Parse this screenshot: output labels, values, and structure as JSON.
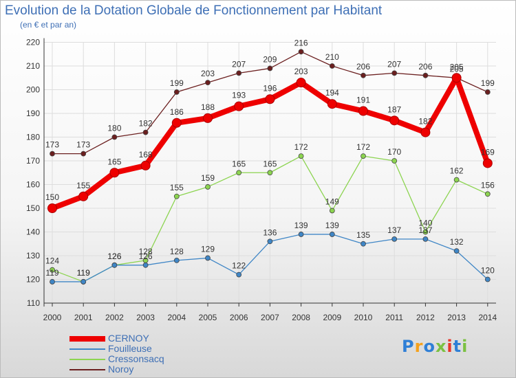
{
  "chart_data": {
    "type": "line",
    "title": "Evolution de la Dotation Globale de Fonctionnement par Habitant",
    "subtitle": "(en € et par an)",
    "xlabel": "",
    "ylabel": "",
    "categories": [
      "2000",
      "2001",
      "2002",
      "2003",
      "2004",
      "2005",
      "2006",
      "2007",
      "2008",
      "2009",
      "2010",
      "2011",
      "2012",
      "2013",
      "2014"
    ],
    "ylim": [
      110,
      220
    ],
    "yticks": [
      110,
      120,
      130,
      140,
      150,
      160,
      170,
      180,
      190,
      200,
      210,
      220
    ],
    "grid": true,
    "legend_position": "bottom-left",
    "series": [
      {
        "name": "Noroy",
        "color": "#6b1f1f",
        "values": [
          173,
          173,
          180,
          182,
          199,
          203,
          207,
          209,
          216,
          210,
          206,
          207,
          206,
          205,
          199
        ]
      },
      {
        "name": "Cressonsacq",
        "color": "#8cd450",
        "values": [
          124,
          119,
          126,
          128,
          155,
          159,
          165,
          165,
          172,
          149,
          172,
          170,
          140,
          162,
          156
        ]
      },
      {
        "name": "Fouilleuse",
        "color": "#3f86c6",
        "values": [
          119,
          119,
          126,
          126,
          128,
          129,
          122,
          136,
          139,
          139,
          135,
          137,
          137,
          132,
          120
        ]
      },
      {
        "name": "CERNOY",
        "color": "#ee0000",
        "values": [
          150,
          155,
          165,
          168,
          186,
          188,
          193,
          196,
          203,
          194,
          191,
          187,
          182,
          205,
          169
        ]
      }
    ]
  },
  "legend": {
    "items": [
      {
        "name": "CERNOY",
        "color": "#ee0000"
      },
      {
        "name": "Fouilleuse",
        "color": "#3f86c6"
      },
      {
        "name": "Cressonsacq",
        "color": "#8cd450"
      },
      {
        "name": "Noroy",
        "color": "#6b1f1f"
      }
    ]
  },
  "logo": {
    "letters": [
      {
        "ch": "P",
        "color": "#2f7fd6"
      },
      {
        "ch": "r",
        "color": "#f5a11c"
      },
      {
        "ch": "o",
        "color": "#2f7fd6"
      },
      {
        "ch": "x",
        "color": "#7bc142"
      },
      {
        "ch": "i",
        "color": "#e8352b"
      },
      {
        "ch": "t",
        "color": "#2f7fd6"
      },
      {
        "ch": "i",
        "color": "#7bc142"
      }
    ]
  }
}
